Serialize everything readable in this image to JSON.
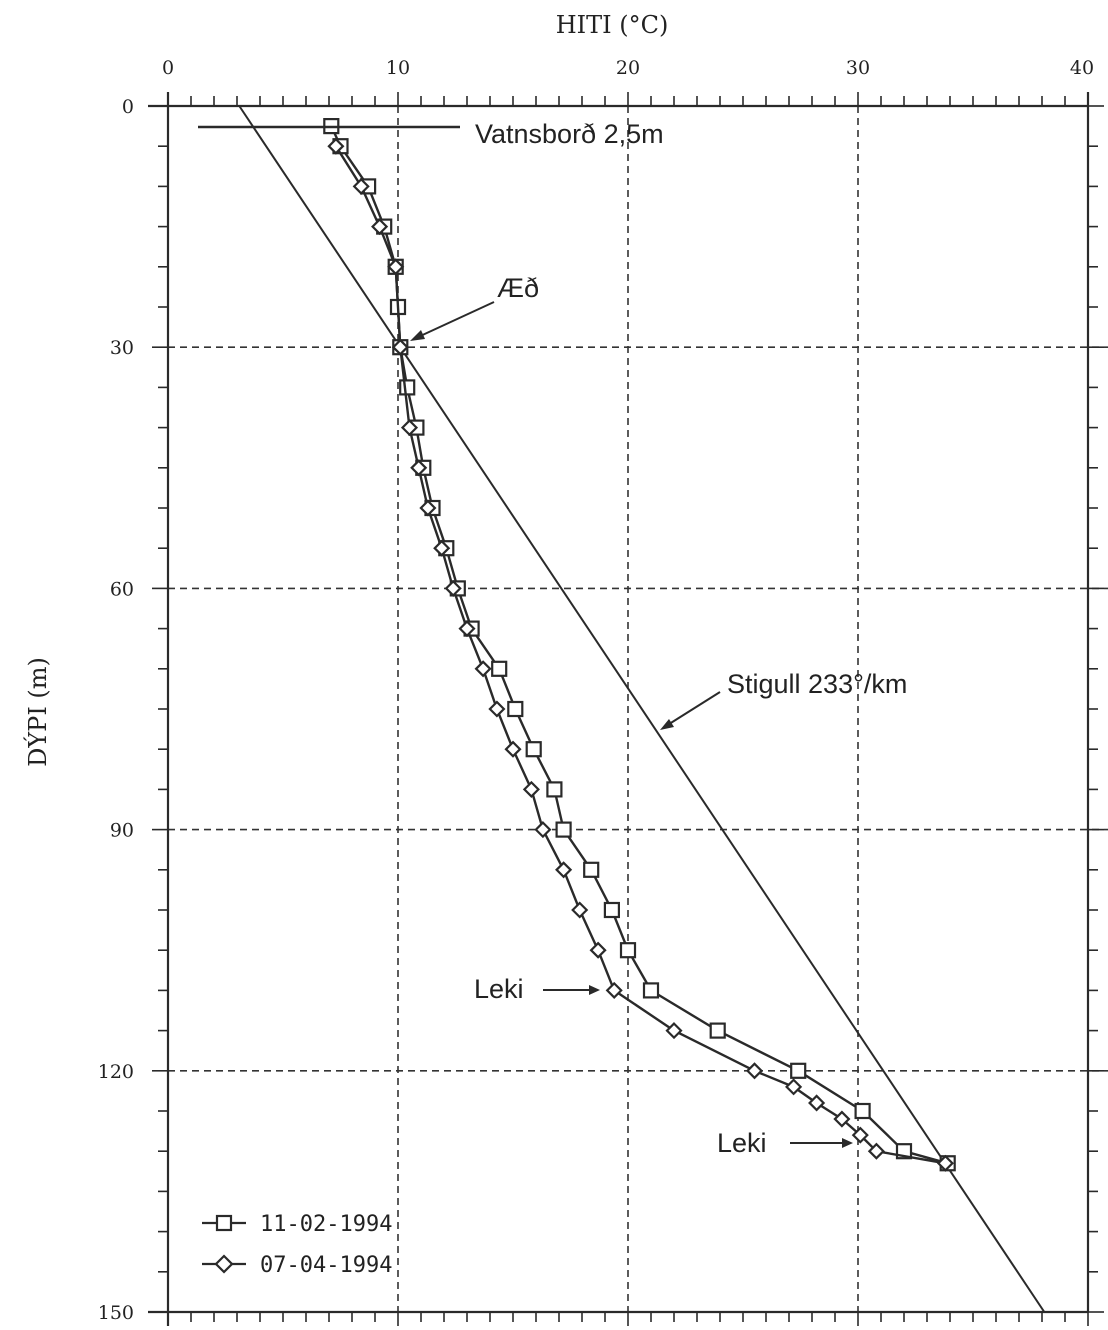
{
  "chart_data": {
    "type": "line",
    "xlabel": "HITI (°C)",
    "ylabel": "DÝPI (m)",
    "xlim": [
      0,
      40
    ],
    "ylim": [
      150,
      0
    ],
    "x_position": "top",
    "x_ticks": [
      0,
      10,
      20,
      30,
      40
    ],
    "y_ticks": [
      0,
      30,
      60,
      90,
      120,
      150
    ],
    "grid": "dashed",
    "colors": {
      "ink": "#2a2a2a",
      "grid": "#333333"
    },
    "legend": {
      "placement": "bottom-left",
      "entries": [
        "11-02-1994",
        "07-04-1994"
      ]
    },
    "series": [
      {
        "name": "11-02-1994",
        "marker": "square",
        "points": [
          [
            7.1,
            2.5
          ],
          [
            7.5,
            5
          ],
          [
            8.7,
            10
          ],
          [
            9.4,
            15
          ],
          [
            9.9,
            20
          ],
          [
            10.0,
            25
          ],
          [
            10.1,
            30
          ],
          [
            10.4,
            35
          ],
          [
            10.8,
            40
          ],
          [
            11.1,
            45
          ],
          [
            11.5,
            50
          ],
          [
            12.1,
            55
          ],
          [
            12.6,
            60
          ],
          [
            13.2,
            65
          ],
          [
            14.4,
            70
          ],
          [
            15.1,
            75
          ],
          [
            15.9,
            80
          ],
          [
            16.8,
            85
          ],
          [
            17.2,
            90
          ],
          [
            18.4,
            95
          ],
          [
            19.3,
            100
          ],
          [
            20.0,
            105
          ],
          [
            21.0,
            110
          ],
          [
            23.9,
            115
          ],
          [
            27.4,
            120
          ],
          [
            30.2,
            125
          ],
          [
            32.0,
            130
          ],
          [
            33.9,
            131.5
          ]
        ]
      },
      {
        "name": "07-04-1994",
        "marker": "diamond",
        "points": [
          [
            7.3,
            5
          ],
          [
            8.4,
            10
          ],
          [
            9.2,
            15
          ],
          [
            9.9,
            20
          ],
          [
            10.1,
            30
          ],
          [
            10.5,
            40
          ],
          [
            10.9,
            45
          ],
          [
            11.3,
            50
          ],
          [
            11.9,
            55
          ],
          [
            12.4,
            60
          ],
          [
            13.0,
            65
          ],
          [
            13.7,
            70
          ],
          [
            14.3,
            75
          ],
          [
            15.0,
            80
          ],
          [
            15.8,
            85
          ],
          [
            16.3,
            90
          ],
          [
            17.2,
            95
          ],
          [
            17.9,
            100
          ],
          [
            18.7,
            105
          ],
          [
            19.4,
            110
          ],
          [
            22.0,
            115
          ],
          [
            25.5,
            120
          ],
          [
            27.2,
            122
          ],
          [
            28.2,
            124
          ],
          [
            29.3,
            126
          ],
          [
            30.1,
            128
          ],
          [
            30.8,
            130
          ],
          [
            33.8,
            131.5
          ]
        ]
      }
    ],
    "gradient_line": {
      "points": [
        [
          3.1,
          0
        ],
        [
          38.1,
          150
        ]
      ]
    },
    "annotations": [
      {
        "text": "Vatnsborð 2,5m"
      },
      {
        "text": "Æð"
      },
      {
        "text": "Stigull 233°/km"
      },
      {
        "text": "Leki"
      },
      {
        "text": "Leki"
      }
    ]
  }
}
